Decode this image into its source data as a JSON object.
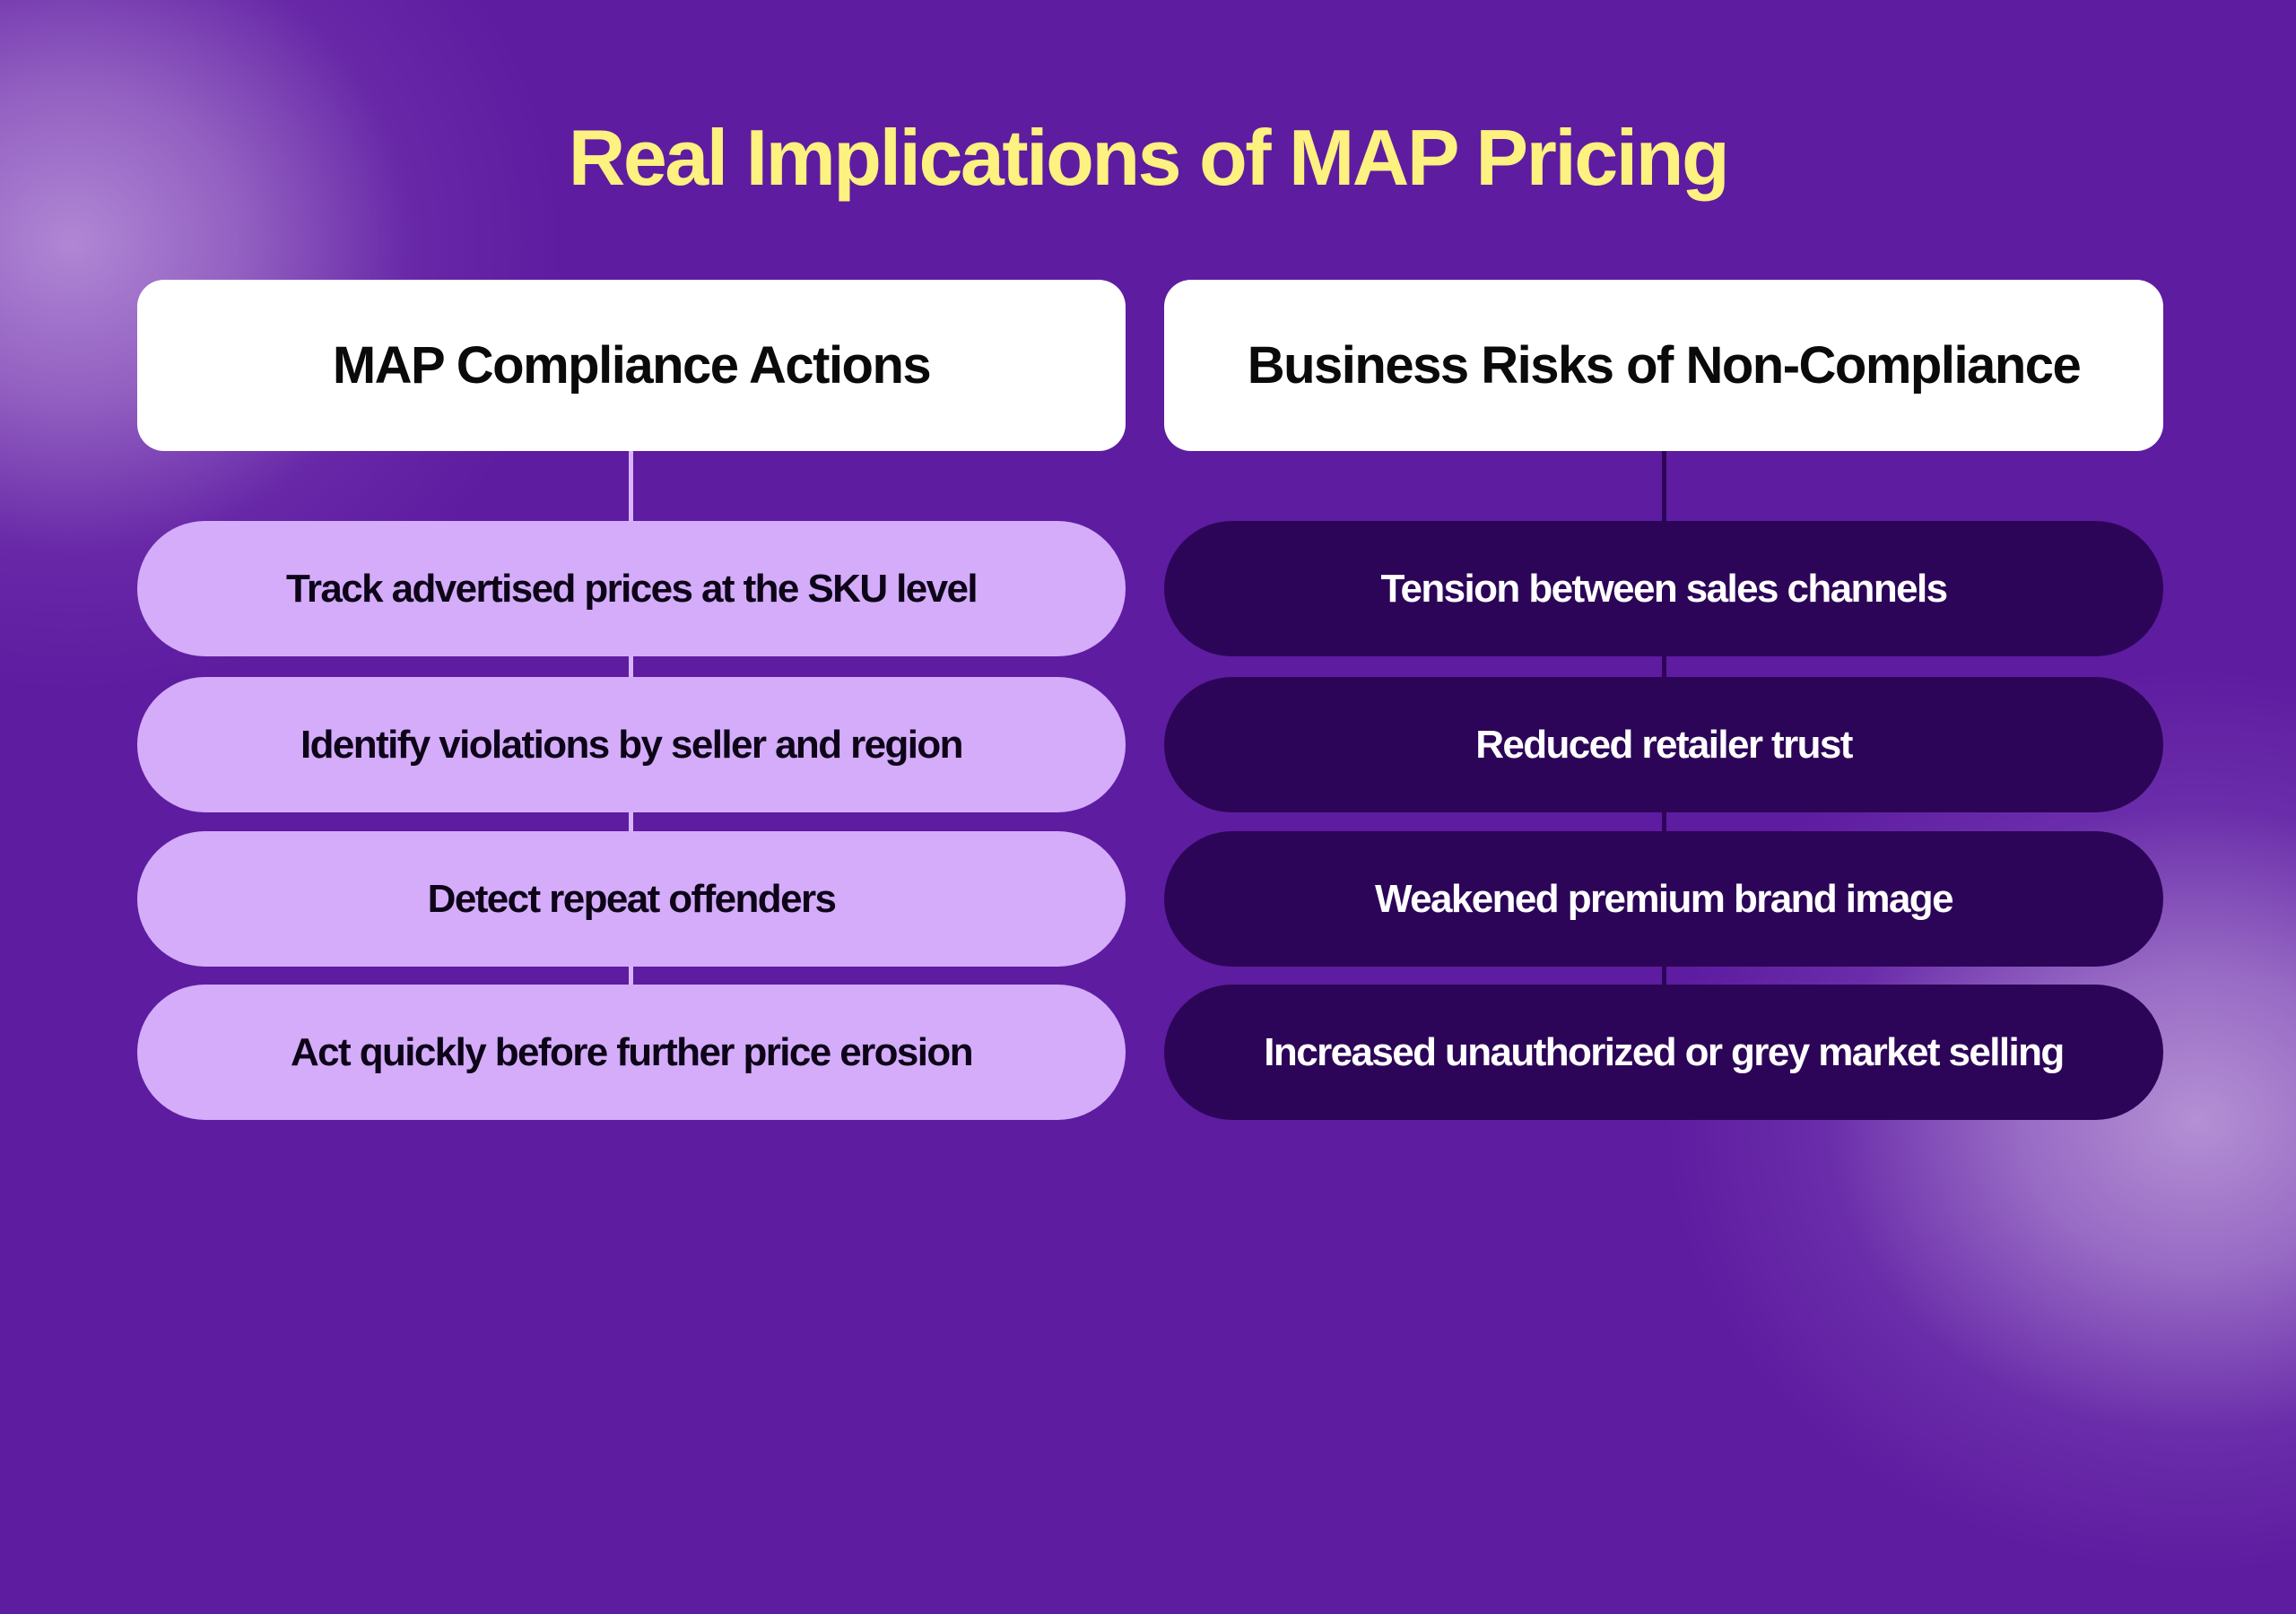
{
  "title": "Real Implications of MAP Pricing",
  "colors": {
    "background": "#5e1ca0",
    "title": "#fdf17f",
    "header_card": "#ffffff",
    "left_pill": "#d4acfa",
    "right_pill": "#2d0558"
  },
  "columns": [
    {
      "header": "MAP Compliance Actions",
      "items": [
        "Track advertised prices at the SKU level",
        "Identify violations by seller and region",
        "Detect repeat offenders",
        "Act quickly before further price erosion"
      ]
    },
    {
      "header": "Business Risks of Non-Compliance",
      "items": [
        "Tension between sales channels",
        "Reduced retailer trust",
        "Weakened premium brand image",
        "Increased unauthorized or grey market selling"
      ]
    }
  ]
}
